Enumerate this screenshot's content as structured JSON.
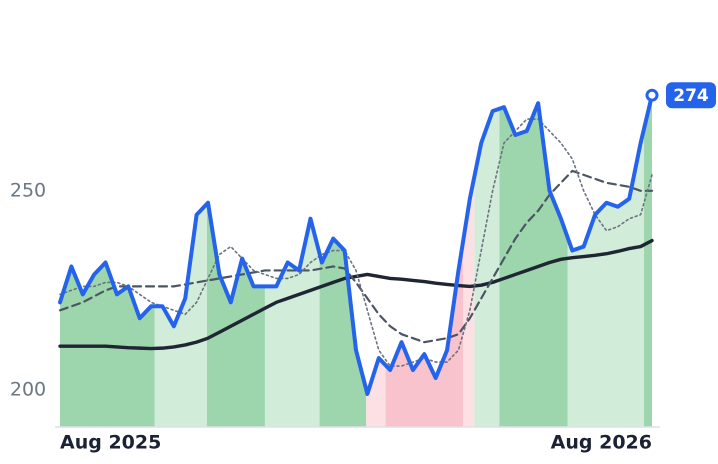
{
  "chart_data": {
    "type": "line",
    "x": [
      0,
      1,
      2,
      3,
      4,
      5,
      6,
      7,
      8,
      9,
      10,
      11,
      12,
      13,
      14,
      15,
      16,
      17,
      18,
      19,
      20,
      21,
      22,
      23,
      24,
      25,
      26,
      27,
      28,
      29,
      30,
      31,
      32,
      33,
      34,
      35,
      36,
      37,
      38,
      39,
      40,
      41,
      42,
      43,
      44,
      45,
      46,
      47,
      48,
      49,
      50,
      51,
      52
    ],
    "xlim": [
      0,
      52
    ],
    "xticks": [
      {
        "value": 0,
        "label": "Aug 2025"
      },
      {
        "value": 52,
        "label": "Aug 2026"
      }
    ],
    "ylim": [
      190.7,
      297.9
    ],
    "yticks": [
      200,
      250
    ],
    "series": [
      {
        "color": "#2563eb",
        "style": "solid",
        "width": 4,
        "values": [
          222,
          231,
          224,
          229,
          232,
          224,
          226,
          218,
          221,
          221,
          216,
          223,
          244,
          247,
          229,
          222,
          233,
          226,
          226,
          226,
          232,
          230,
          243,
          232,
          238,
          235,
          210,
          199,
          208,
          205,
          212,
          205,
          209,
          203,
          210,
          230,
          248,
          262,
          270,
          271,
          264,
          265,
          272,
          250,
          243,
          235,
          236,
          244,
          247,
          246,
          248,
          262,
          274
        ]
      },
      {
        "color": "#6b7280",
        "style": "dotted",
        "width": 1.6,
        "values": [
          224,
          225,
          226,
          226,
          227,
          227,
          226,
          224,
          222,
          221,
          220,
          219,
          222,
          228,
          234,
          236,
          233,
          230,
          229,
          228,
          228,
          229,
          232,
          234,
          235,
          235,
          230,
          220,
          210,
          206,
          206,
          207,
          208,
          207,
          207,
          210,
          220,
          235,
          250,
          262,
          265,
          268,
          268,
          265,
          262,
          258,
          250,
          244,
          240,
          241,
          243,
          244,
          254
        ]
      },
      {
        "color": "#4b5563",
        "style": "dashed",
        "width": 2.2,
        "values": [
          220,
          221,
          222,
          223.5,
          225,
          226,
          226,
          226,
          226,
          226,
          226,
          226.5,
          227,
          227.5,
          228,
          228.5,
          229,
          229.5,
          230,
          230,
          230,
          230,
          230,
          230.5,
          231,
          230.5,
          227,
          223,
          219,
          216,
          214,
          213,
          212,
          212.5,
          213,
          214,
          218,
          223,
          228,
          233,
          238,
          242,
          245,
          249,
          252,
          255,
          254,
          253,
          252,
          251.5,
          251,
          250,
          250
        ]
      },
      {
        "color": "#1e2533",
        "style": "solid",
        "width": 3.4,
        "values": [
          211,
          211,
          211,
          211,
          211,
          210.8,
          210.6,
          210.5,
          210.4,
          210.5,
          210.8,
          211.3,
          212,
          213,
          214.5,
          216,
          217.5,
          219,
          220.5,
          222,
          223,
          224,
          225,
          226,
          227,
          228,
          228.5,
          229,
          228.5,
          228,
          227.8,
          227.5,
          227.2,
          226.8,
          226.5,
          226.2,
          226,
          226.3,
          227,
          228,
          229,
          230,
          231,
          232,
          232.8,
          233.2,
          233.5,
          233.8,
          234.2,
          234.8,
          235.5,
          236,
          237.5
        ]
      }
    ],
    "bands": [
      {
        "from": 0,
        "to": 8.3,
        "color": "#9dd5ad"
      },
      {
        "from": 8.3,
        "to": 12.9,
        "color": "#d2ecda"
      },
      {
        "from": 12.9,
        "to": 18,
        "color": "#9dd5ad"
      },
      {
        "from": 18,
        "to": 22.8,
        "color": "#d2ecda"
      },
      {
        "from": 22.8,
        "to": 26.9,
        "color": "#9dd5ad"
      },
      {
        "from": 26.9,
        "to": 28.6,
        "color": "#fde0e4"
      },
      {
        "from": 28.6,
        "to": 35.4,
        "color": "#f8c3cc"
      },
      {
        "from": 35.4,
        "to": 36.4,
        "color": "#fde0e4"
      },
      {
        "from": 36.4,
        "to": 38.6,
        "color": "#d2ecda"
      },
      {
        "from": 38.6,
        "to": 44.6,
        "color": "#9dd5ad"
      },
      {
        "from": 44.6,
        "to": 51.3,
        "color": "#d2ecda"
      },
      {
        "from": 51.3,
        "to": 52,
        "color": "#9dd5ad"
      }
    ],
    "badge_color": "#2563eb"
  }
}
